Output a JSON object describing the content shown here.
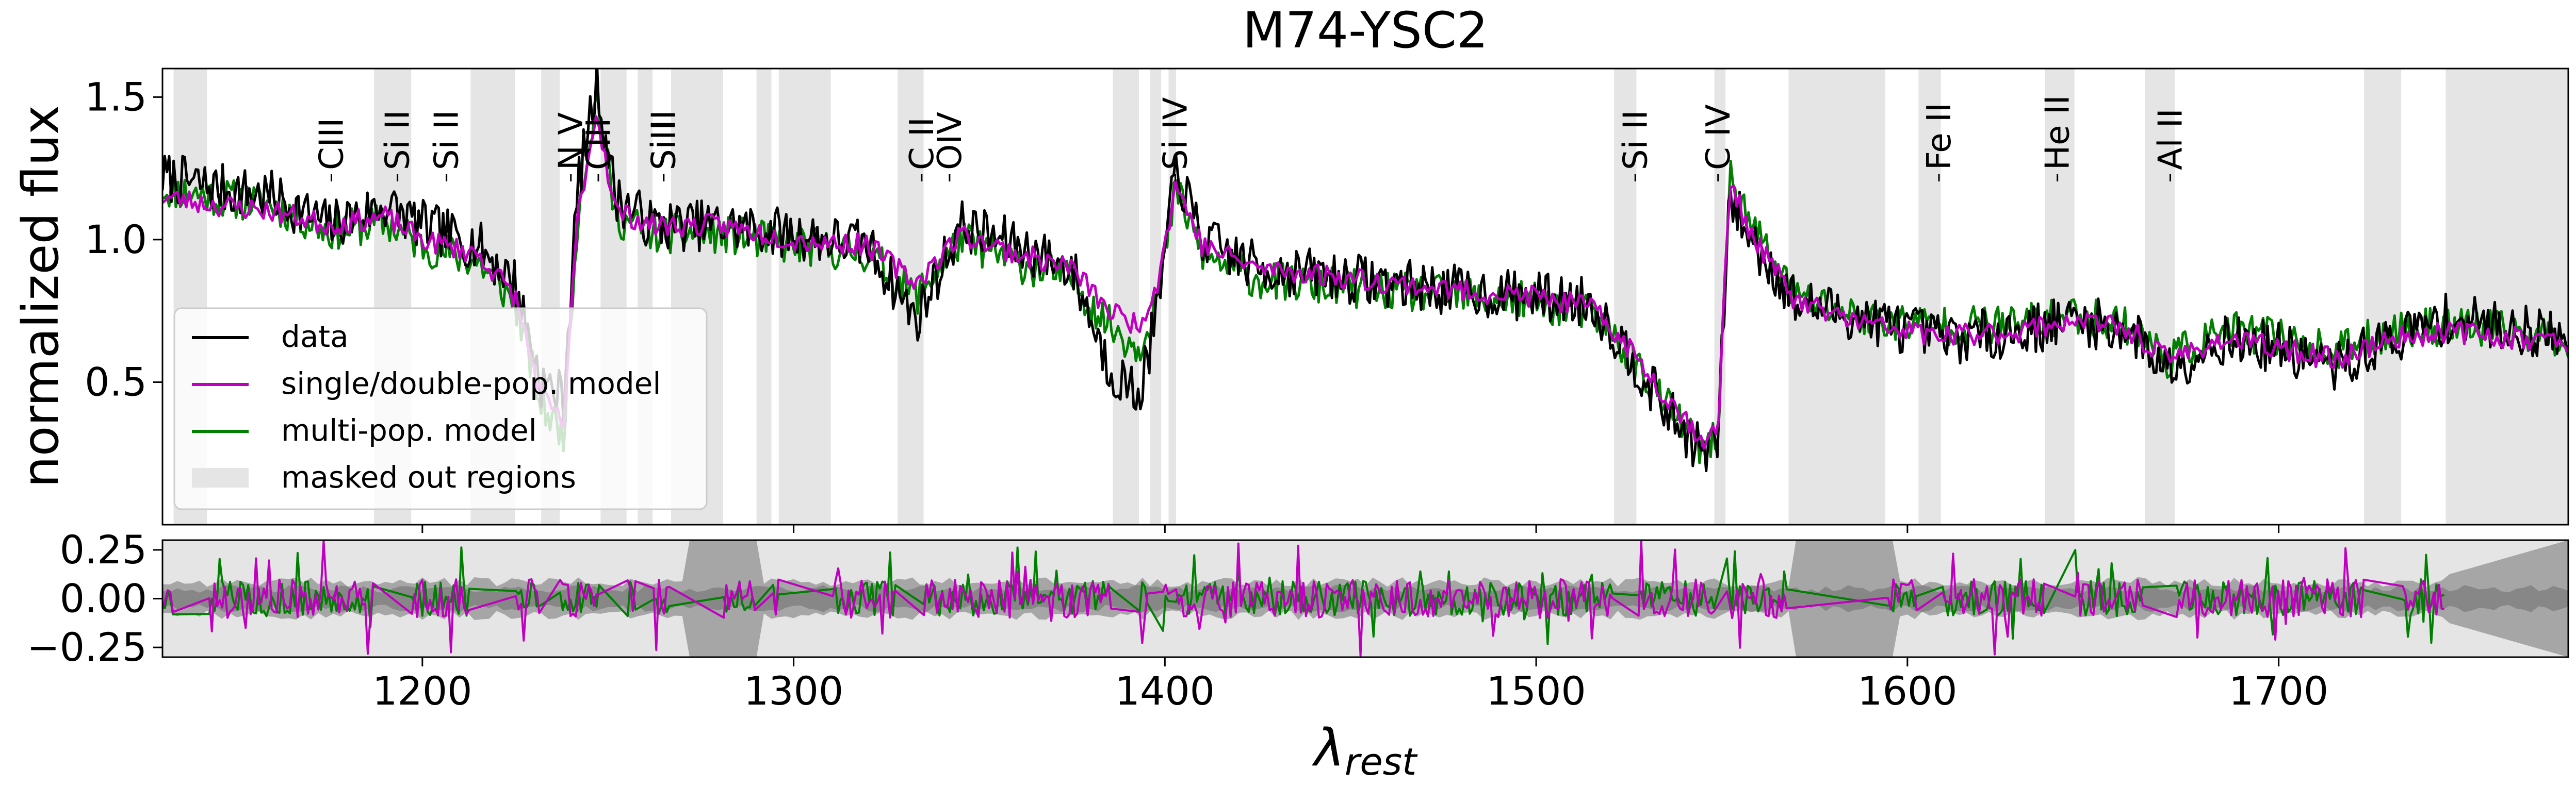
{
  "chart_data": [
    {
      "type": "line",
      "title": "M74-YSC2",
      "xlabel": "",
      "ylabel": "normalized flux",
      "xlim": [
        1130,
        1778
      ],
      "ylim": [
        0.0,
        1.6
      ],
      "xticks": [
        1200,
        1300,
        1400,
        1500,
        1600,
        1700
      ],
      "yticks": [
        0.5,
        1.0,
        1.5
      ],
      "ytick_labels": [
        "0.5",
        "1.0",
        "1.5"
      ],
      "grid": false,
      "legend_position": "lower-left",
      "legend": [
        {
          "label": "data",
          "color": "#000000",
          "kind": "line"
        },
        {
          "label": "single/double-pop. model",
          "color": "#bf00bf",
          "kind": "line"
        },
        {
          "label": "multi-pop. model",
          "color": "#007f00",
          "kind": "line"
        },
        {
          "label": "masked out regions",
          "color": "#e5e5e5",
          "kind": "patch"
        }
      ],
      "masked_regions": [
        [
          1133,
          1142
        ],
        [
          1187,
          1197
        ],
        [
          1213,
          1225
        ],
        [
          1232,
          1237
        ],
        [
          1248,
          1255
        ],
        [
          1258,
          1262
        ],
        [
          1267,
          1281
        ],
        [
          1290,
          1294
        ],
        [
          1296,
          1310
        ],
        [
          1328,
          1335
        ],
        [
          1386,
          1393
        ],
        [
          1396,
          1399
        ],
        [
          1401,
          1403
        ],
        [
          1521,
          1527
        ],
        [
          1548,
          1551
        ],
        [
          1568,
          1594
        ],
        [
          1603,
          1609
        ],
        [
          1637,
          1645
        ],
        [
          1664,
          1672
        ],
        [
          1723,
          1733
        ],
        [
          1745,
          1778
        ]
      ],
      "line_annotations": [
        {
          "label": "CIII",
          "x": 1175.5
        },
        {
          "label": "Si II",
          "x": 1193.3
        },
        {
          "label": "Si II",
          "x": 1206.5
        },
        {
          "label": "N V",
          "x": 1240.0
        },
        {
          "label": "CIII",
          "x": 1247.4
        },
        {
          "label": "Si II",
          "x": 1265.0
        },
        {
          "label": "SiII",
          "x": 1265.0
        },
        {
          "label": "C II",
          "x": 1334.5
        },
        {
          "label": "OIV",
          "x": 1342.0
        },
        {
          "label": "Si IV",
          "x": 1402.8
        },
        {
          "label": "Si II",
          "x": 1526.7
        },
        {
          "label": "C IV",
          "x": 1549.0
        },
        {
          "label": "Fe II",
          "x": 1608.5
        },
        {
          "label": "He II",
          "x": 1640.4
        },
        {
          "label": "Al II",
          "x": 1670.8
        }
      ],
      "series_anchors": {
        "data": [
          [
            1130,
            1.22
          ],
          [
            1145,
            1.18
          ],
          [
            1160,
            1.15
          ],
          [
            1175,
            1.05
          ],
          [
            1190,
            1.12
          ],
          [
            1200,
            1.05
          ],
          [
            1215,
            0.98
          ],
          [
            1225,
            0.85
          ],
          [
            1232,
            0.5
          ],
          [
            1238,
            0.45
          ],
          [
            1242,
            1.2
          ],
          [
            1247,
            1.55
          ],
          [
            1252,
            1.15
          ],
          [
            1262,
            1.05
          ],
          [
            1280,
            1.05
          ],
          [
            1300,
            1.02
          ],
          [
            1320,
            0.98
          ],
          [
            1333,
            0.72
          ],
          [
            1345,
            1.05
          ],
          [
            1360,
            0.98
          ],
          [
            1375,
            0.9
          ],
          [
            1385,
            0.55
          ],
          [
            1393,
            0.45
          ],
          [
            1398,
            0.75
          ],
          [
            1403,
            1.25
          ],
          [
            1410,
            1.0
          ],
          [
            1425,
            0.9
          ],
          [
            1440,
            0.88
          ],
          [
            1460,
            0.85
          ],
          [
            1480,
            0.82
          ],
          [
            1500,
            0.8
          ],
          [
            1515,
            0.78
          ],
          [
            1525,
            0.6
          ],
          [
            1535,
            0.4
          ],
          [
            1545,
            0.25
          ],
          [
            1549,
            0.3
          ],
          [
            1552,
            1.15
          ],
          [
            1558,
            1.0
          ],
          [
            1570,
            0.78
          ],
          [
            1590,
            0.72
          ],
          [
            1610,
            0.65
          ],
          [
            1630,
            0.68
          ],
          [
            1645,
            0.72
          ],
          [
            1660,
            0.68
          ],
          [
            1670,
            0.55
          ],
          [
            1685,
            0.65
          ],
          [
            1700,
            0.62
          ],
          [
            1715,
            0.55
          ],
          [
            1730,
            0.65
          ],
          [
            1745,
            0.72
          ],
          [
            1760,
            0.7
          ],
          [
            1778,
            0.65
          ]
        ],
        "single_double_pop_model": [
          [
            1130,
            1.15
          ],
          [
            1145,
            1.12
          ],
          [
            1160,
            1.1
          ],
          [
            1175,
            1.05
          ],
          [
            1190,
            1.08
          ],
          [
            1200,
            1.0
          ],
          [
            1215,
            0.95
          ],
          [
            1225,
            0.8
          ],
          [
            1232,
            0.45
          ],
          [
            1238,
            0.35
          ],
          [
            1242,
            1.1
          ],
          [
            1247,
            1.45
          ],
          [
            1252,
            1.1
          ],
          [
            1262,
            1.05
          ],
          [
            1280,
            1.05
          ],
          [
            1300,
            1.0
          ],
          [
            1320,
            0.98
          ],
          [
            1333,
            0.85
          ],
          [
            1345,
            1.02
          ],
          [
            1360,
            0.95
          ],
          [
            1375,
            0.9
          ],
          [
            1385,
            0.75
          ],
          [
            1393,
            0.7
          ],
          [
            1398,
            0.85
          ],
          [
            1403,
            1.2
          ],
          [
            1410,
            0.98
          ],
          [
            1425,
            0.9
          ],
          [
            1440,
            0.88
          ],
          [
            1460,
            0.85
          ],
          [
            1480,
            0.82
          ],
          [
            1500,
            0.8
          ],
          [
            1515,
            0.76
          ],
          [
            1525,
            0.62
          ],
          [
            1535,
            0.45
          ],
          [
            1545,
            0.3
          ],
          [
            1549,
            0.32
          ],
          [
            1552,
            1.2
          ],
          [
            1558,
            1.02
          ],
          [
            1570,
            0.78
          ],
          [
            1590,
            0.7
          ],
          [
            1610,
            0.66
          ],
          [
            1630,
            0.68
          ],
          [
            1645,
            0.72
          ],
          [
            1660,
            0.68
          ],
          [
            1670,
            0.58
          ],
          [
            1685,
            0.65
          ],
          [
            1700,
            0.62
          ],
          [
            1715,
            0.58
          ],
          [
            1730,
            0.65
          ],
          [
            1745,
            0.68
          ],
          [
            1760,
            0.66
          ],
          [
            1778,
            0.64
          ]
        ],
        "multi_pop_model": [
          [
            1130,
            1.18
          ],
          [
            1145,
            1.15
          ],
          [
            1160,
            1.12
          ],
          [
            1175,
            1.03
          ],
          [
            1190,
            1.06
          ],
          [
            1200,
            0.98
          ],
          [
            1215,
            0.92
          ],
          [
            1225,
            0.78
          ],
          [
            1232,
            0.42
          ],
          [
            1238,
            0.32
          ],
          [
            1242,
            1.12
          ],
          [
            1247,
            1.5
          ],
          [
            1252,
            1.08
          ],
          [
            1262,
            1.02
          ],
          [
            1280,
            1.02
          ],
          [
            1300,
            0.98
          ],
          [
            1320,
            0.95
          ],
          [
            1333,
            0.8
          ],
          [
            1345,
            1.0
          ],
          [
            1360,
            0.92
          ],
          [
            1375,
            0.86
          ],
          [
            1385,
            0.7
          ],
          [
            1393,
            0.62
          ],
          [
            1398,
            0.8
          ],
          [
            1403,
            1.18
          ],
          [
            1410,
            0.95
          ],
          [
            1425,
            0.86
          ],
          [
            1440,
            0.84
          ],
          [
            1460,
            0.82
          ],
          [
            1480,
            0.8
          ],
          [
            1500,
            0.78
          ],
          [
            1515,
            0.74
          ],
          [
            1525,
            0.6
          ],
          [
            1535,
            0.42
          ],
          [
            1545,
            0.26
          ],
          [
            1549,
            0.3
          ],
          [
            1552,
            1.22
          ],
          [
            1558,
            1.05
          ],
          [
            1570,
            0.8
          ],
          [
            1590,
            0.72
          ],
          [
            1610,
            0.7
          ],
          [
            1630,
            0.7
          ],
          [
            1645,
            0.74
          ],
          [
            1660,
            0.7
          ],
          [
            1670,
            0.58
          ],
          [
            1685,
            0.68
          ],
          [
            1700,
            0.66
          ],
          [
            1715,
            0.6
          ],
          [
            1730,
            0.68
          ],
          [
            1745,
            0.7
          ],
          [
            1760,
            0.68
          ],
          [
            1778,
            0.65
          ]
        ]
      }
    },
    {
      "type": "line",
      "title": "",
      "xlabel": "λrest",
      "ylabel": "",
      "xlim": [
        1130,
        1778
      ],
      "ylim": [
        -0.3,
        0.3
      ],
      "xticks": [
        1200,
        1300,
        1400,
        1500,
        1600,
        1700
      ],
      "xtick_labels": [
        "1200",
        "1300",
        "1400",
        "1500",
        "1600",
        "1700"
      ],
      "yticks": [
        0.25,
        0.0,
        -0.25
      ],
      "ytick_labels": [
        "0.25",
        "0.00",
        "−0.25"
      ],
      "grid": false,
      "series": [
        {
          "name": "",
          "color": "#bf00bf",
          "description": "residuals single/double-pop."
        },
        {
          "name": "",
          "color": "#007f00",
          "description": "residuals multi-pop."
        }
      ]
    }
  ]
}
